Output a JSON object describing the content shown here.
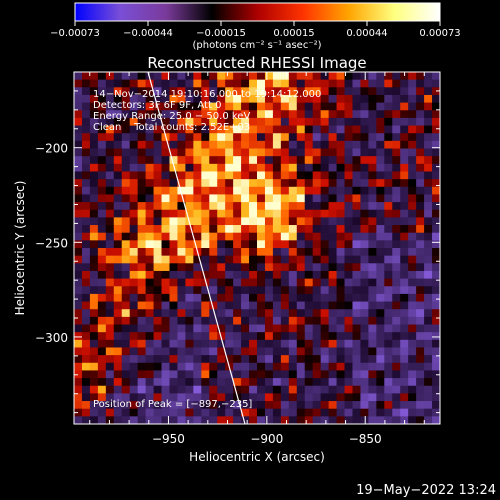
{
  "colorbar": {
    "ticks": [
      "-0.00073",
      "-0.00044",
      "-0.00015",
      "0.00015",
      "0.00044",
      "0.00073"
    ],
    "units": "(photons cm⁻² s⁻¹ asec⁻²)",
    "colors": [
      "#0000ff",
      "#7a4fd6",
      "#7a3a9a",
      "#000000",
      "#ad0000",
      "#ff3300",
      "#ffa500",
      "#ffff80",
      "#ffffff"
    ]
  },
  "chart_data": {
    "type": "heatmap",
    "title": "Reconstructed RHESSI Image",
    "xlabel": "Heliocentric X (arcsec)",
    "ylabel": "Heliocentric Y (arcsec)",
    "xlim": [
      -998,
      -812
    ],
    "ylim": [
      -346,
      -160
    ],
    "xticks": [
      -950,
      -900,
      -850
    ],
    "xtick_labels": [
      "−950",
      "−900",
      "−850"
    ],
    "yticks": [
      -200,
      -250,
      -300
    ],
    "ytick_labels": [
      "−200",
      "−250",
      "−300"
    ],
    "zlim": [
      -0.00073,
      0.00073
    ],
    "peak": [
      -897,
      -235
    ],
    "annotations": [
      "14−Nov−2014 19:10:16.000 to 19:14:12.000",
      "Detectors: 3F 6F 9F, Att 0",
      "Energy Range: 25.0 − 50.0 keV",
      "Clean    Total counts: 2.52E+03",
      "Position of Peak = [−897,−235]"
    ]
  },
  "footer": {
    "date": "19−May−2022 13:24"
  }
}
